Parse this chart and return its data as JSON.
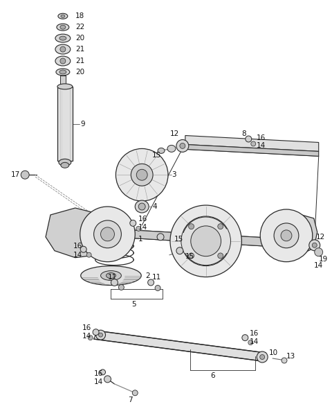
{
  "bg_color": "#ffffff",
  "line_color": "#2a2a2a",
  "fig_width": 4.8,
  "fig_height": 6.03,
  "dpi": 100
}
